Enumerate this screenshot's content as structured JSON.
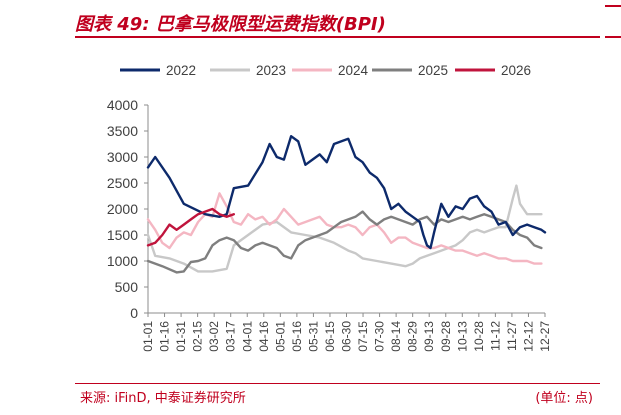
{
  "figure": {
    "title": "图表 49:  巴拿马极限型运费指数(BPI)",
    "source": "来源: iFinD, 中泰证券研究所",
    "unit": "(单位: 点)"
  },
  "chart_data": {
    "type": "line",
    "title": "",
    "xlabel": "",
    "ylabel": "",
    "ylim": [
      0,
      4000
    ],
    "yticks": [
      "0",
      "500",
      "1000",
      "1500",
      "2000",
      "2500",
      "3000",
      "3500",
      "4000"
    ],
    "x_tick_labels": [
      "01-01",
      "01-16",
      "01-31",
      "02-15",
      "03-02",
      "03-17",
      "04-01",
      "04-16",
      "05-01",
      "05-16",
      "05-31",
      "06-15",
      "06-30",
      "07-15",
      "07-30",
      "08-14",
      "08-29",
      "09-13",
      "09-28",
      "10-13",
      "10-28",
      "11-12",
      "11-27",
      "12-12",
      "12-27"
    ],
    "grid": false,
    "legend_position": "top",
    "colors": {
      "2022": "#0d2a6b",
      "2023": "#c8c8c8",
      "2024": "#f4b6c2",
      "2025": "#7f7f7f",
      "2026": "#c0143c"
    },
    "series": [
      {
        "name": "2022",
        "values": [
          [
            0,
            2800
          ],
          [
            1,
            3000
          ],
          [
            3,
            2600
          ],
          [
            5,
            2100
          ],
          [
            8,
            1900
          ],
          [
            10,
            1850
          ],
          [
            11,
            1900
          ],
          [
            12,
            2400
          ],
          [
            14,
            2450
          ],
          [
            16,
            2900
          ],
          [
            17,
            3250
          ],
          [
            18,
            3000
          ],
          [
            19,
            2950
          ],
          [
            20,
            3400
          ],
          [
            21,
            3300
          ],
          [
            22,
            2850
          ],
          [
            23,
            2950
          ],
          [
            24,
            3050
          ],
          [
            25,
            2900
          ],
          [
            26,
            3250
          ],
          [
            27,
            3300
          ],
          [
            28,
            3350
          ],
          [
            29,
            3000
          ],
          [
            30,
            2900
          ],
          [
            31,
            2700
          ],
          [
            32,
            2600
          ],
          [
            33,
            2400
          ],
          [
            34,
            2000
          ],
          [
            35,
            2100
          ],
          [
            36,
            1950
          ],
          [
            37,
            1850
          ],
          [
            38,
            1750
          ],
          [
            38.5,
            1500
          ],
          [
            39,
            1300
          ],
          [
            39.5,
            1250
          ],
          [
            40,
            1550
          ],
          [
            41,
            2100
          ],
          [
            42,
            1850
          ],
          [
            43,
            2050
          ],
          [
            44,
            2000
          ],
          [
            45,
            2200
          ],
          [
            46,
            2250
          ],
          [
            47,
            2050
          ],
          [
            48,
            1950
          ],
          [
            49,
            1700
          ],
          [
            50,
            1750
          ],
          [
            51,
            1500
          ],
          [
            52,
            1650
          ],
          [
            53,
            1700
          ],
          [
            54,
            1650
          ],
          [
            55,
            1600
          ],
          [
            55.5,
            1550
          ]
        ]
      },
      {
        "name": "2023",
        "values": [
          [
            0,
            1500
          ],
          [
            1,
            1100
          ],
          [
            3,
            1050
          ],
          [
            5,
            950
          ],
          [
            7,
            800
          ],
          [
            9,
            800
          ],
          [
            11,
            850
          ],
          [
            12,
            1300
          ],
          [
            14,
            1500
          ],
          [
            16,
            1700
          ],
          [
            18,
            1750
          ],
          [
            20,
            1550
          ],
          [
            22,
            1500
          ],
          [
            24,
            1450
          ],
          [
            26,
            1350
          ],
          [
            28,
            1200
          ],
          [
            29,
            1150
          ],
          [
            30,
            1050
          ],
          [
            32,
            1000
          ],
          [
            34,
            950
          ],
          [
            36,
            900
          ],
          [
            37,
            950
          ],
          [
            38,
            1050
          ],
          [
            39,
            1100
          ],
          [
            40,
            1150
          ],
          [
            41,
            1200
          ],
          [
            42,
            1250
          ],
          [
            43,
            1300
          ],
          [
            44,
            1400
          ],
          [
            45,
            1550
          ],
          [
            46,
            1600
          ],
          [
            47,
            1550
          ],
          [
            48,
            1600
          ],
          [
            49,
            1650
          ],
          [
            50,
            1650
          ],
          [
            51,
            2200
          ],
          [
            51.5,
            2450
          ],
          [
            52,
            2100
          ],
          [
            53,
            1900
          ],
          [
            54,
            1900
          ],
          [
            55,
            1900
          ]
        ]
      },
      {
        "name": "2024",
        "values": [
          [
            0,
            1800
          ],
          [
            1,
            1600
          ],
          [
            2,
            1350
          ],
          [
            3,
            1250
          ],
          [
            4,
            1450
          ],
          [
            5,
            1550
          ],
          [
            6,
            1500
          ],
          [
            7,
            1750
          ],
          [
            8,
            1900
          ],
          [
            9,
            1850
          ],
          [
            10,
            2300
          ],
          [
            11,
            2050
          ],
          [
            12,
            1750
          ],
          [
            13,
            1700
          ],
          [
            14,
            1900
          ],
          [
            15,
            1800
          ],
          [
            16,
            1850
          ],
          [
            17,
            1700
          ],
          [
            18,
            1800
          ],
          [
            19,
            2000
          ],
          [
            20,
            1850
          ],
          [
            21,
            1700
          ],
          [
            22,
            1750
          ],
          [
            23,
            1800
          ],
          [
            24,
            1850
          ],
          [
            25,
            1700
          ],
          [
            26,
            1650
          ],
          [
            27,
            1650
          ],
          [
            28,
            1700
          ],
          [
            29,
            1650
          ],
          [
            30,
            1500
          ],
          [
            31,
            1650
          ],
          [
            32,
            1700
          ],
          [
            33,
            1550
          ],
          [
            34,
            1350
          ],
          [
            35,
            1450
          ],
          [
            36,
            1450
          ],
          [
            37,
            1350
          ],
          [
            38,
            1300
          ],
          [
            39,
            1250
          ],
          [
            40,
            1250
          ],
          [
            41,
            1300
          ],
          [
            42,
            1250
          ],
          [
            43,
            1200
          ],
          [
            44,
            1200
          ],
          [
            45,
            1150
          ],
          [
            46,
            1100
          ],
          [
            47,
            1150
          ],
          [
            48,
            1100
          ],
          [
            49,
            1050
          ],
          [
            50,
            1050
          ],
          [
            51,
            1000
          ],
          [
            52,
            1000
          ],
          [
            53,
            1000
          ],
          [
            54,
            950
          ],
          [
            55,
            950
          ]
        ]
      },
      {
        "name": "2025",
        "values": [
          [
            0,
            1000
          ],
          [
            2,
            900
          ],
          [
            4,
            780
          ],
          [
            5,
            800
          ],
          [
            6,
            980
          ],
          [
            7,
            1000
          ],
          [
            8,
            1050
          ],
          [
            9,
            1300
          ],
          [
            10,
            1400
          ],
          [
            11,
            1450
          ],
          [
            12,
            1400
          ],
          [
            13,
            1250
          ],
          [
            14,
            1200
          ],
          [
            15,
            1300
          ],
          [
            16,
            1350
          ],
          [
            17,
            1300
          ],
          [
            18,
            1250
          ],
          [
            19,
            1100
          ],
          [
            20,
            1050
          ],
          [
            21,
            1300
          ],
          [
            22,
            1400
          ],
          [
            23,
            1450
          ],
          [
            24,
            1500
          ],
          [
            25,
            1550
          ],
          [
            26,
            1650
          ],
          [
            27,
            1750
          ],
          [
            28,
            1800
          ],
          [
            29,
            1850
          ],
          [
            30,
            1950
          ],
          [
            31,
            1800
          ],
          [
            32,
            1700
          ],
          [
            33,
            1800
          ],
          [
            34,
            1850
          ],
          [
            35,
            1800
          ],
          [
            36,
            1750
          ],
          [
            37,
            1700
          ],
          [
            38,
            1800
          ],
          [
            39,
            1850
          ],
          [
            40,
            1700
          ],
          [
            41,
            1800
          ],
          [
            42,
            1750
          ],
          [
            43,
            1800
          ],
          [
            44,
            1850
          ],
          [
            45,
            1800
          ],
          [
            46,
            1850
          ],
          [
            47,
            1900
          ],
          [
            48,
            1850
          ],
          [
            49,
            1800
          ],
          [
            50,
            1750
          ],
          [
            51,
            1600
          ],
          [
            52,
            1500
          ],
          [
            53,
            1450
          ],
          [
            54,
            1300
          ],
          [
            55,
            1250
          ]
        ]
      },
      {
        "name": "2026",
        "values": [
          [
            0,
            1300
          ],
          [
            1,
            1350
          ],
          [
            2,
            1500
          ],
          [
            3,
            1700
          ],
          [
            4,
            1600
          ],
          [
            5,
            1700
          ],
          [
            6,
            1800
          ],
          [
            7,
            1900
          ],
          [
            8,
            1950
          ],
          [
            9,
            2000
          ],
          [
            10,
            1900
          ],
          [
            11,
            1850
          ],
          [
            12,
            1900
          ]
        ]
      }
    ],
    "x_note": "x values are chart point indices, 25 tick labels spaced every 2.25 points across 56 points per year"
  }
}
